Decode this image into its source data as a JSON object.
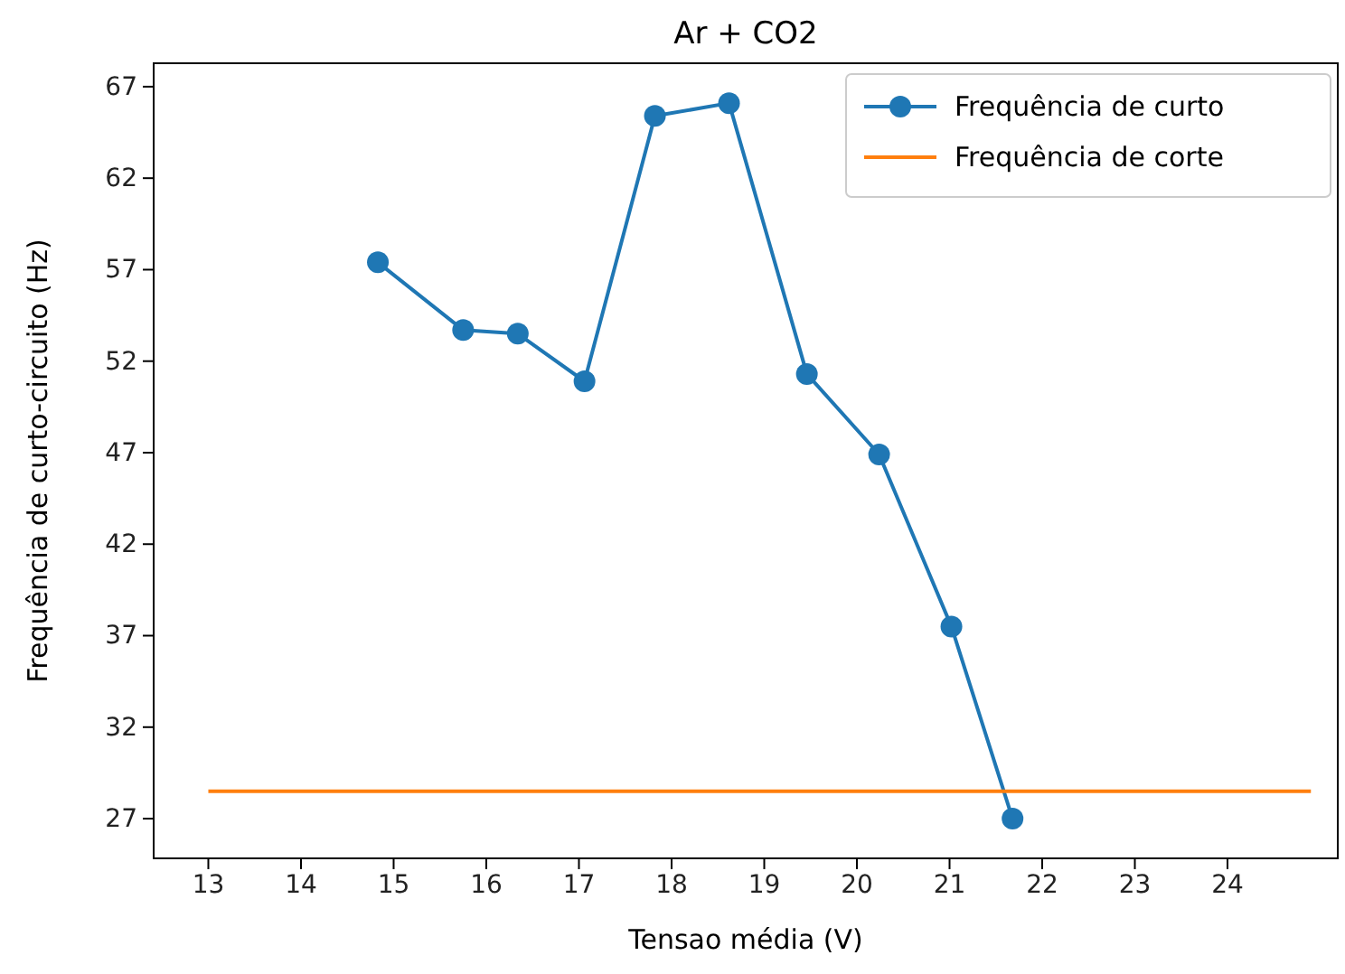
{
  "chart_data": {
    "type": "line",
    "title": "Ar + CO2",
    "xlabel": "Tensao média (V)",
    "ylabel": "Frequência de curto-circuito (Hz)",
    "xlim": [
      12.41,
      25.19
    ],
    "ylim": [
      24.83,
      68.28
    ],
    "xticks": [
      13,
      14,
      15,
      16,
      17,
      18,
      19,
      20,
      21,
      22,
      23,
      24
    ],
    "yticks": [
      27,
      32,
      37,
      42,
      47,
      52,
      57,
      62,
      67
    ],
    "grid": false,
    "legend": "top right",
    "series": [
      {
        "name": "Frequência de curto",
        "color": "#1f77b4",
        "marker": "circle",
        "x": [
          14.83,
          15.75,
          16.34,
          17.06,
          17.82,
          18.62,
          19.46,
          20.24,
          21.02,
          21.68
        ],
        "values": [
          57.4,
          53.7,
          53.5,
          50.9,
          65.4,
          66.1,
          51.3,
          46.9,
          37.5,
          27.0
        ]
      },
      {
        "name": "Frequência de corte",
        "color": "#ff7f0e",
        "marker": "none",
        "x": [
          13,
          24.9
        ],
        "values": [
          28.5,
          28.5
        ]
      }
    ]
  }
}
